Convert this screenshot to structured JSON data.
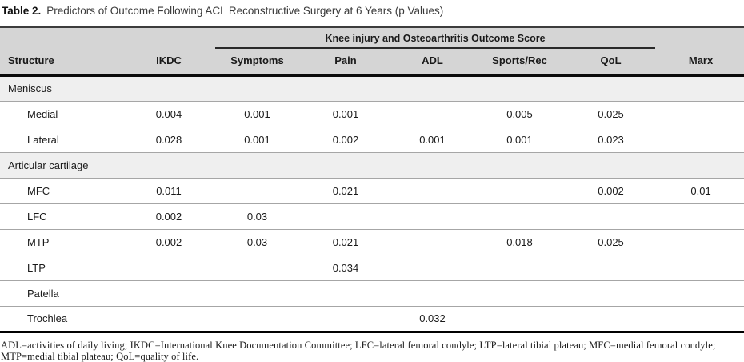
{
  "title": {
    "label": "Table 2.",
    "text": "Predictors of Outcome Following ACL Reconstructive Surgery at 6 Years (p Values)"
  },
  "table": {
    "spanner": "Knee injury and Osteoarthritis Outcome Score",
    "columns": [
      "Structure",
      "IKDC",
      "Symptoms",
      "Pain",
      "ADL",
      "Sports/Rec",
      "QoL",
      "Marx"
    ],
    "rows": [
      {
        "type": "section",
        "label": "Meniscus",
        "values": [
          "",
          "",
          "",
          "",
          "",
          "",
          ""
        ]
      },
      {
        "type": "data",
        "label": "Medial",
        "values": [
          "0.004",
          "0.001",
          "0.001",
          "",
          "0.005",
          "0.025",
          ""
        ]
      },
      {
        "type": "data",
        "label": "Lateral",
        "values": [
          "0.028",
          "0.001",
          "0.002",
          "0.001",
          "0.001",
          "0.023",
          ""
        ]
      },
      {
        "type": "section",
        "label": "Articular cartilage",
        "values": [
          "",
          "",
          "",
          "",
          "",
          "",
          ""
        ]
      },
      {
        "type": "data",
        "label": "MFC",
        "values": [
          "0.011",
          "",
          "0.021",
          "",
          "",
          "0.002",
          "0.01"
        ]
      },
      {
        "type": "data",
        "label": "LFC",
        "values": [
          "0.002",
          "0.03",
          "",
          "",
          "",
          "",
          ""
        ]
      },
      {
        "type": "data",
        "label": "MTP",
        "values": [
          "0.002",
          "0.03",
          "0.021",
          "",
          "0.018",
          "0.025",
          ""
        ]
      },
      {
        "type": "data",
        "label": "LTP",
        "values": [
          "",
          "",
          "0.034",
          "",
          "",
          "",
          ""
        ]
      },
      {
        "type": "data",
        "label": "Patella",
        "values": [
          "",
          "",
          "",
          "",
          "",
          "",
          ""
        ]
      },
      {
        "type": "data",
        "label": "Trochlea",
        "values": [
          "",
          "",
          "",
          "0.032",
          "",
          "",
          ""
        ]
      }
    ]
  },
  "footnote": "ADL=activities of daily living; IKDC=International Knee Documentation Committee; LFC=lateral femoral condyle; LTP=lateral tibial plateau; MFC=medial femoral condyle; MTP=medial tibial plateau; QoL=quality of life.",
  "colors": {
    "header_bg": "#d5d5d5",
    "section_bg": "#efefef",
    "border_dark": "#000000",
    "row_line": "#a6a6a6"
  }
}
